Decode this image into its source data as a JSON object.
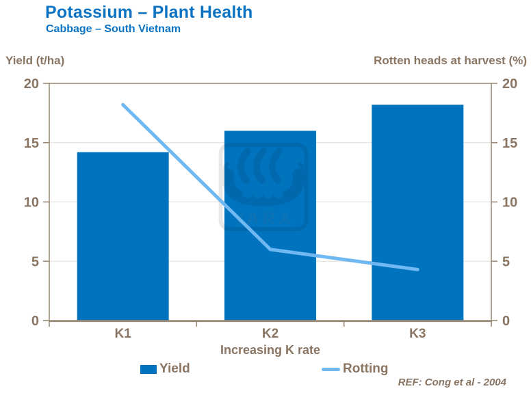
{
  "header": {
    "title": "Potassium – Plant Health",
    "subtitle": "Cabbage – South Vietnam"
  },
  "axes": {
    "left_title": "Yield (t/ha)",
    "right_title": "Rotten heads at harvest (%)",
    "x_title": "Increasing K rate",
    "ticks": [
      0,
      5,
      10,
      15,
      20
    ],
    "ylim": [
      0,
      20
    ]
  },
  "chart_data": {
    "type": "bar",
    "categories": [
      "K1",
      "K2",
      "K3"
    ],
    "series": [
      {
        "name": "Yield",
        "type": "bar",
        "axis": "left",
        "color": "#0073BF",
        "values": [
          14.2,
          16.0,
          18.2
        ]
      },
      {
        "name": "Rotting",
        "type": "line",
        "axis": "right",
        "color": "#6FB8F1",
        "values": [
          18.2,
          6.0,
          4.3
        ]
      }
    ],
    "title": "Potassium – Plant Health",
    "subtitle": "Cabbage – South Vietnam",
    "xlabel": "Increasing K rate",
    "ylabel_left": "Yield (t/ha)",
    "ylabel_right": "Rotten heads at harvest (%)",
    "ylim": [
      0,
      20
    ],
    "grid": "horizontal",
    "legend_position": "bottom"
  },
  "legend": {
    "items": [
      {
        "label": "Yield"
      },
      {
        "label": "Rotting"
      }
    ]
  },
  "watermark": {
    "text": "YARA",
    "icon": "yara-viking-ship-logo"
  },
  "footer": {
    "ref": "REF: Cong et al - 2004"
  },
  "colors": {
    "title_blue": "#0C73C2",
    "bar_blue": "#0073BF",
    "line_blue": "#6FB8F1",
    "label_brown": "#8A7563",
    "axis_brown": "#9A8A77",
    "gridline": "#E2DDD4",
    "background": "#FFFFFF"
  }
}
